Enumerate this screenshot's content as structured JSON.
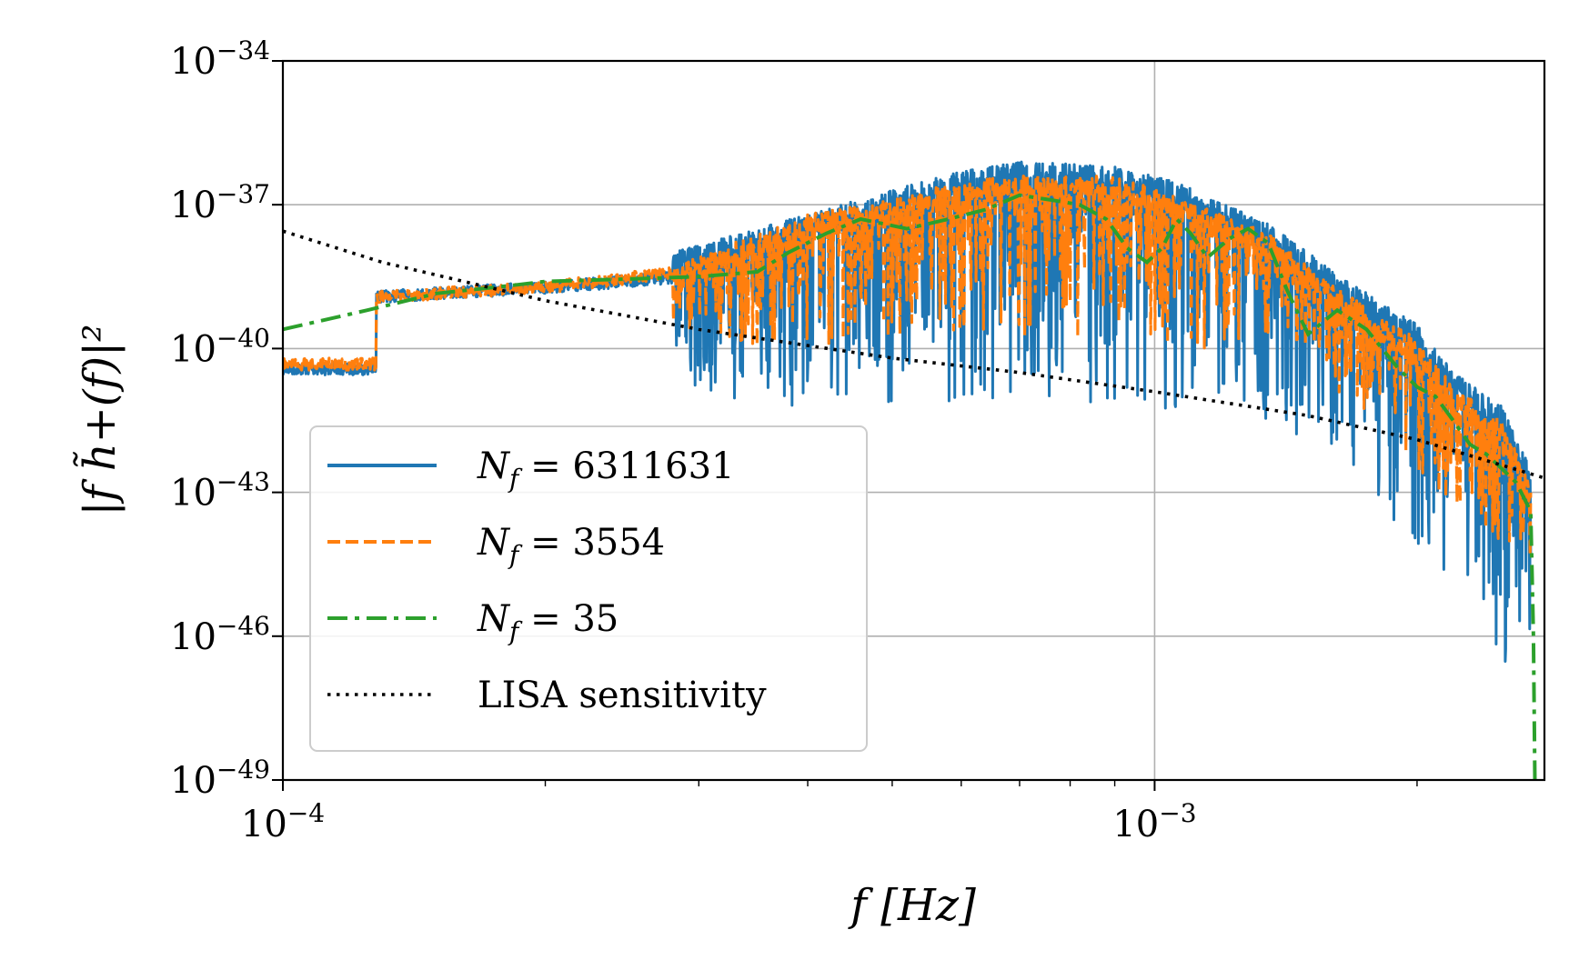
{
  "chart_data": {
    "type": "line",
    "title": "",
    "xlabel": "f [Hz]",
    "ylabel": "|f h̃+(f)|²",
    "xscale": "log",
    "yscale": "log",
    "xlim": [
      0.0001,
      0.0028
    ],
    "ylim": [
      1e-49,
      1e-34
    ],
    "grid": true,
    "legend_position": "lower-left",
    "x_ticks": [
      {
        "value": 0.0001,
        "base": "10",
        "exp": "−4"
      },
      {
        "value": 0.001,
        "base": "10",
        "exp": "−3"
      }
    ],
    "y_ticks": [
      {
        "value": 1e-34,
        "base": "10",
        "exp": "−34"
      },
      {
        "value": 1e-37,
        "base": "10",
        "exp": "−37"
      },
      {
        "value": 1e-40,
        "base": "10",
        "exp": "−40"
      },
      {
        "value": 1e-43,
        "base": "10",
        "exp": "−43"
      },
      {
        "value": 1e-46,
        "base": "10",
        "exp": "−46"
      },
      {
        "value": 1e-49,
        "base": "10",
        "exp": "−49"
      }
    ],
    "series": [
      {
        "name": "N_f = 6311631",
        "legend_sym": "N",
        "legend_sub": "f",
        "legend_rest": " = 6311631",
        "style": "solid",
        "color": "#1f77b4",
        "envelope_upper": [
          [
            0.0001,
            -40.3
          ],
          [
            0.000128,
            -40.3
          ],
          [
            0.000128,
            -38.8
          ],
          [
            0.0002,
            -38.6
          ],
          [
            0.00028,
            -38.4
          ],
          [
            0.00028,
            -38.0
          ],
          [
            0.00035,
            -37.5
          ],
          [
            0.0004,
            -37.2
          ],
          [
            0.0005,
            -36.7
          ],
          [
            0.0006,
            -36.3
          ],
          [
            0.0007,
            -36.1
          ],
          [
            0.0009,
            -36.2
          ],
          [
            0.00105,
            -36.5
          ],
          [
            0.00135,
            -37.4
          ],
          [
            0.0015,
            -38.0
          ],
          [
            0.0018,
            -39.0
          ],
          [
            0.002,
            -39.5
          ],
          [
            0.0022,
            -40.5
          ],
          [
            0.0025,
            -41.2
          ],
          [
            0.0027,
            -42.5
          ]
        ],
        "envelope_lower": [
          [
            0.00028,
            -40.0
          ],
          [
            0.0003,
            -41.0
          ],
          [
            0.00035,
            -41.6
          ],
          [
            0.0004,
            -41.0
          ],
          [
            0.0005,
            -41.2
          ],
          [
            0.0006,
            -41.2
          ],
          [
            0.0008,
            -41.0
          ],
          [
            0.001,
            -41.5
          ],
          [
            0.0013,
            -41.5
          ],
          [
            0.0015,
            -42.0
          ],
          [
            0.0018,
            -43.0
          ],
          [
            0.002,
            -44.5
          ],
          [
            0.0022,
            -45.5
          ],
          [
            0.0025,
            -46.5
          ],
          [
            0.0027,
            -47.5
          ]
        ]
      },
      {
        "name": "N_f = 3554",
        "legend_sym": "N",
        "legend_sub": "f",
        "legend_rest": " = 3554",
        "style": "dashed",
        "color": "#ff7f0e",
        "envelope_upper": [
          [
            0.0001,
            -40.2
          ],
          [
            0.000128,
            -40.2
          ],
          [
            0.000128,
            -38.8
          ],
          [
            0.0002,
            -38.6
          ],
          [
            0.00028,
            -38.3
          ],
          [
            0.00035,
            -37.6
          ],
          [
            0.0004,
            -37.2
          ],
          [
            0.0005,
            -36.9
          ],
          [
            0.0006,
            -36.5
          ],
          [
            0.0007,
            -36.4
          ],
          [
            0.0009,
            -36.4
          ],
          [
            0.00105,
            -36.8
          ],
          [
            0.00135,
            -37.6
          ],
          [
            0.0015,
            -38.3
          ],
          [
            0.0018,
            -39.3
          ],
          [
            0.002,
            -39.8
          ],
          [
            0.0022,
            -40.8
          ],
          [
            0.0025,
            -41.5
          ],
          [
            0.0027,
            -42.8
          ]
        ],
        "envelope_lower": [
          [
            0.00028,
            -39.5
          ],
          [
            0.0003,
            -40.0
          ],
          [
            0.00035,
            -40.0
          ],
          [
            0.0004,
            -40.0
          ],
          [
            0.0005,
            -39.9
          ],
          [
            0.0006,
            -39.8
          ],
          [
            0.0008,
            -39.8
          ],
          [
            0.001,
            -40.0
          ],
          [
            0.0013,
            -40.0
          ],
          [
            0.0015,
            -40.5
          ],
          [
            0.0018,
            -41.5
          ],
          [
            0.002,
            -42.5
          ],
          [
            0.0022,
            -43.5
          ],
          [
            0.0025,
            -44.0
          ],
          [
            0.0027,
            -44.5
          ]
        ]
      },
      {
        "name": "N_f = 35",
        "legend_sym": "N",
        "legend_sub": "f",
        "legend_rest": " = 35",
        "style": "dashdot",
        "color": "#2ca02c",
        "points": [
          [
            0.0001,
            -39.6
          ],
          [
            0.000125,
            -39.2
          ],
          [
            0.00015,
            -38.85
          ],
          [
            0.00018,
            -38.7
          ],
          [
            0.0002,
            -38.6
          ],
          [
            0.00025,
            -38.55
          ],
          [
            0.0003,
            -38.5
          ],
          [
            0.00035,
            -38.4
          ],
          [
            0.00038,
            -38.0
          ],
          [
            0.00042,
            -37.6
          ],
          [
            0.00046,
            -37.3
          ],
          [
            0.00052,
            -37.5
          ],
          [
            0.00058,
            -37.3
          ],
          [
            0.00064,
            -37.1
          ],
          [
            0.0007,
            -36.8
          ],
          [
            0.00076,
            -36.9
          ],
          [
            0.00082,
            -37.0
          ],
          [
            0.00088,
            -37.3
          ],
          [
            0.00093,
            -37.9
          ],
          [
            0.00098,
            -38.2
          ],
          [
            0.00102,
            -37.9
          ],
          [
            0.00106,
            -37.3
          ],
          [
            0.0011,
            -37.6
          ],
          [
            0.00115,
            -38.1
          ],
          [
            0.00122,
            -37.7
          ],
          [
            0.00128,
            -37.5
          ],
          [
            0.00135,
            -37.8
          ],
          [
            0.00142,
            -38.8
          ],
          [
            0.0015,
            -39.7
          ],
          [
            0.00162,
            -39.2
          ],
          [
            0.00175,
            -39.6
          ],
          [
            0.0019,
            -40.4
          ],
          [
            0.002,
            -40.8
          ],
          [
            0.0021,
            -41.0
          ],
          [
            0.0022,
            -41.5
          ],
          [
            0.0023,
            -42.0
          ],
          [
            0.0024,
            -42.2
          ],
          [
            0.0025,
            -42.5
          ],
          [
            0.0026,
            -42.8
          ],
          [
            0.0027,
            -43.4
          ],
          [
            0.00272,
            -46.0
          ],
          [
            0.00273,
            -49.0
          ]
        ]
      },
      {
        "name": "LISA sensitivity",
        "legend_text": "LISA sensitivity",
        "style": "dotted",
        "color": "#000000",
        "points": [
          [
            0.0001,
            -37.55
          ],
          [
            0.00013,
            -38.2
          ],
          [
            0.0002,
            -39.0
          ],
          [
            0.0003,
            -39.6
          ],
          [
            0.0005,
            -40.2
          ],
          [
            0.0007,
            -40.5
          ],
          [
            0.001,
            -40.9
          ],
          [
            0.0015,
            -41.4
          ],
          [
            0.002,
            -41.9
          ],
          [
            0.0028,
            -42.7
          ]
        ]
      }
    ]
  }
}
